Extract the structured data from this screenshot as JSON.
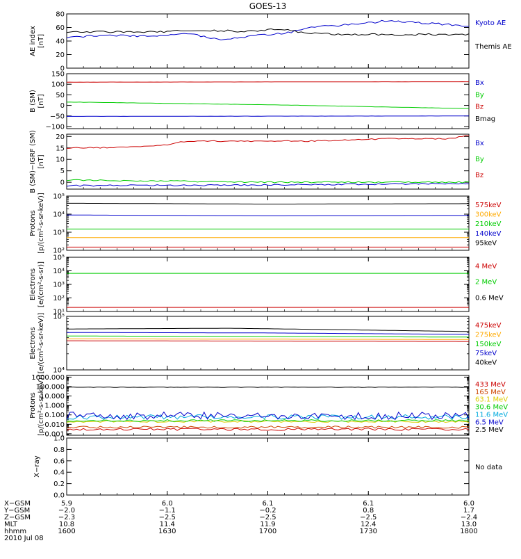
{
  "title": "GOES-13",
  "chart_data": [
    {
      "type": "line",
      "ylabel": "AE index\n[nT]",
      "ylim": [
        0,
        80
      ],
      "yscale": "linear",
      "yticks": [
        "0",
        "20",
        "40",
        "60",
        "80"
      ],
      "yvals": [
        0,
        20,
        40,
        60,
        80
      ],
      "series": [
        {
          "name": "Kyoto AE",
          "color": "#0000cc",
          "profile": [
            [
              0,
              46
            ],
            [
              0.1,
              48
            ],
            [
              0.2,
              47
            ],
            [
              0.3,
              52
            ],
            [
              0.35,
              45
            ],
            [
              0.4,
              42
            ],
            [
              0.45,
              47
            ],
            [
              0.55,
              52
            ],
            [
              0.6,
              60
            ],
            [
              0.7,
              64
            ],
            [
              0.8,
              70
            ],
            [
              0.9,
              66
            ],
            [
              1,
              62
            ]
          ],
          "noise": 1.5
        },
        {
          "name": "Themis AE",
          "color": "#000000",
          "profile": [
            [
              0,
              54
            ],
            [
              0.2,
              53
            ],
            [
              0.35,
              56
            ],
            [
              0.45,
              54
            ],
            [
              0.5,
              57
            ],
            [
              0.55,
              56
            ],
            [
              0.6,
              51
            ],
            [
              0.8,
              49
            ],
            [
              1,
              50
            ]
          ],
          "noise": 1.5
        }
      ]
    },
    {
      "type": "line",
      "ylabel": "B (SM)\n[nT]",
      "ylim": [
        -110,
        150
      ],
      "yscale": "linear",
      "yticks": [
        "150",
        "100",
        "50",
        "0",
        "−50",
        "−100"
      ],
      "yvals": [
        150,
        100,
        50,
        0,
        -50,
        -100
      ],
      "series": [
        {
          "name": "Bx",
          "color": "#0000cc",
          "profile": [
            [
              0,
              -52
            ],
            [
              1,
              -50
            ]
          ],
          "noise": 0.3
        },
        {
          "name": "By",
          "color": "#00cc00",
          "profile": [
            [
              0,
              16
            ],
            [
              0.5,
              3
            ],
            [
              1,
              -15
            ]
          ],
          "noise": 0.5
        },
        {
          "name": "Bz",
          "color": "#cc0000",
          "profile": [
            [
              0,
              110
            ],
            [
              1,
              112
            ]
          ],
          "noise": 0.2
        },
        {
          "name": "Bmag",
          "color": "#000000",
          "profile": [],
          "noise": 0
        }
      ]
    },
    {
      "type": "line",
      "ylabel": "B (SM)−IGRF (SM)\n[nT]",
      "ylim": [
        -3,
        21
      ],
      "yscale": "linear",
      "yticks": [
        "20",
        "15",
        "10",
        "5",
        "0"
      ],
      "yvals": [
        20,
        15,
        10,
        5,
        0
      ],
      "series": [
        {
          "name": "Bx",
          "color": "#0000cc",
          "profile": [
            [
              0,
              -1.5
            ],
            [
              0.5,
              -1.2
            ],
            [
              1,
              -0.5
            ]
          ],
          "noise": 0.3
        },
        {
          "name": "By",
          "color": "#00cc00",
          "profile": [
            [
              0,
              1
            ],
            [
              0.5,
              0
            ],
            [
              1,
              0
            ]
          ],
          "noise": 0.3
        },
        {
          "name": "Bz",
          "color": "#cc0000",
          "profile": [
            [
              0,
              15
            ],
            [
              0.15,
              15.2
            ],
            [
              0.25,
              16.5
            ],
            [
              0.3,
              18
            ],
            [
              0.5,
              18
            ],
            [
              0.6,
              18
            ],
            [
              0.8,
              19
            ],
            [
              0.95,
              19
            ],
            [
              1,
              20.5
            ]
          ],
          "noise": 0.25
        }
      ]
    },
    {
      "type": "line",
      "ylabel": "Protons\n[p/(cm²-s-sr-keV)]",
      "ylim": [
        100,
        100000
      ],
      "yscale": "log",
      "yticks": [
        "10⁵",
        "10⁴",
        "10³",
        "10²"
      ],
      "yvals": [
        100000,
        10000,
        1000,
        100
      ],
      "series": [
        {
          "name": "575keV",
          "color": "#cc0000",
          "profile": [
            [
              0,
              150
            ],
            [
              1,
              150
            ]
          ],
          "noise": 0
        },
        {
          "name": "300keV",
          "color": "#ffaa00",
          "profile": [
            [
              0,
              500
            ],
            [
              1,
              500
            ]
          ],
          "noise": 0
        },
        {
          "name": "210keV",
          "color": "#00cc00",
          "profile": [
            [
              0,
              1500
            ],
            [
              1,
              1500
            ]
          ],
          "noise": 0
        },
        {
          "name": "140keV",
          "color": "#0000cc",
          "profile": [
            [
              0,
              9000
            ],
            [
              0.5,
              8000
            ],
            [
              1,
              8500
            ]
          ],
          "noise": 0
        },
        {
          "name": "95keV",
          "color": "#000000",
          "profile": [
            [
              0,
              40000
            ],
            [
              0.5,
              36000
            ],
            [
              1,
              38000
            ]
          ],
          "noise": 0
        }
      ]
    },
    {
      "type": "line",
      "ylabel": "Electrons\n[e/(cm²-s-sr)]",
      "ylim": [
        10,
        100000
      ],
      "yscale": "log",
      "yticks": [
        "10⁵",
        "10⁴",
        "10³",
        "10²",
        "10¹"
      ],
      "yvals": [
        100000,
        10000,
        1000,
        100,
        10
      ],
      "series": [
        {
          "name": "4 MeV",
          "color": "#cc0000",
          "profile": [
            [
              0,
              20
            ],
            [
              1,
              20
            ]
          ],
          "noise": 0
        },
        {
          "name": "2 MeV",
          "color": "#00cc00",
          "profile": [
            [
              0,
              6500
            ],
            [
              1,
              6500
            ]
          ],
          "noise": 0
        },
        {
          "name": "0.6 MeV",
          "color": "#000000",
          "profile": [],
          "noise": 0
        }
      ]
    },
    {
      "type": "line",
      "ylabel": "Electrons\n[e/(cm²-s-sr-keV)]",
      "ylim": [
        10000,
        100000
      ],
      "yscale": "log",
      "yticks": [
        "10⁵",
        "10⁴"
      ],
      "yvals": [
        100000,
        10000
      ],
      "series": [
        {
          "name": "475keV",
          "color": "#cc0000",
          "profile": [
            [
              0,
              35000
            ],
            [
              1,
              34000
            ]
          ],
          "noise": 0
        },
        {
          "name": "275keV",
          "color": "#ffaa00",
          "profile": [
            [
              0,
              38000
            ],
            [
              1,
              37000
            ]
          ],
          "noise": 0
        },
        {
          "name": "150keV",
          "color": "#00cc00",
          "profile": [
            [
              0,
              43000
            ],
            [
              1,
              41000
            ]
          ],
          "noise": 0
        },
        {
          "name": "75keV",
          "color": "#0000cc",
          "profile": [
            [
              0,
              50000
            ],
            [
              0.5,
              49000
            ],
            [
              1,
              46000
            ]
          ],
          "noise": 0
        },
        {
          "name": "40keV",
          "color": "#000000",
          "profile": [
            [
              0,
              58000
            ],
            [
              0.4,
              60000
            ],
            [
              1,
              52000
            ]
          ],
          "noise": 0
        }
      ]
    },
    {
      "type": "line",
      "ylabel": "Protons\n[p/(cm²-s-sr-keV)]",
      "ylim": [
        0.0007,
        1500
      ],
      "yscale": "log",
      "yticks": [
        "1000.000",
        "100.000",
        "10.000",
        "1.000",
        "0.100",
        "0.010",
        "0.001"
      ],
      "yvals": [
        1000,
        100,
        10,
        1,
        0.1,
        0.01,
        0.001
      ],
      "series": [
        {
          "name": "433 MeV",
          "color": "#cc0000",
          "profile": [
            [
              0,
              0.003
            ],
            [
              1,
              0.003
            ]
          ],
          "noise": 0.25
        },
        {
          "name": "165 MeV",
          "color": "#cc4400",
          "profile": [
            [
              0,
              0.005
            ],
            [
              1,
              0.005
            ]
          ],
          "noise": 0.25
        },
        {
          "name": "63.1 MeV",
          "color": "#ddcc00",
          "profile": [
            [
              0,
              0.02
            ],
            [
              1,
              0.02
            ]
          ],
          "noise": 0.2
        },
        {
          "name": "30.6 MeV",
          "color": "#00cc00",
          "profile": [
            [
              0,
              0.025
            ],
            [
              1,
              0.025
            ]
          ],
          "noise": 0.2
        },
        {
          "name": "11.6 MeV",
          "color": "#00aadd",
          "profile": [
            [
              0,
              0.06
            ],
            [
              1,
              0.06
            ]
          ],
          "noise": 0.5
        },
        {
          "name": "6.5 MeV",
          "color": "#0000cc",
          "profile": [
            [
              0,
              0.08
            ],
            [
              1,
              0.08
            ]
          ],
          "noise": 0.8
        },
        {
          "name": "2.5 MeV",
          "color": "#000000",
          "profile": [
            [
              0,
              85
            ],
            [
              1,
              85
            ]
          ],
          "noise": 0.04
        }
      ]
    },
    {
      "type": "line",
      "ylabel": "X−ray",
      "ylim": [
        0,
        1
      ],
      "yscale": "linear",
      "yticks": [
        "1.0",
        "0.8",
        "0.6",
        "0.4",
        "0.2",
        "0.0"
      ],
      "yvals": [
        1,
        0.8,
        0.6,
        0.4,
        0.2,
        0
      ],
      "series": [],
      "note": "No data"
    }
  ],
  "x_axis": {
    "row_labels": [
      "X−GSM",
      "Y−GSM",
      "Z−GSM",
      "MLT",
      "hhmm"
    ],
    "ticks": [
      [
        "5.9",
        "−2.0",
        "−2.3",
        "10.8",
        "1600"
      ],
      [
        "6.0",
        "−1.1",
        "−2.5",
        "11.4",
        "1630"
      ],
      [
        "6.1",
        "−0.2",
        "−2.5",
        "11.9",
        "1700"
      ],
      [
        "6.1",
        "0.8",
        "−2.5",
        "12.4",
        "1730"
      ],
      [
        "6.0",
        "1.7",
        "−2.4",
        "13.0",
        "1800"
      ]
    ],
    "date": "2010 Jul 08"
  }
}
